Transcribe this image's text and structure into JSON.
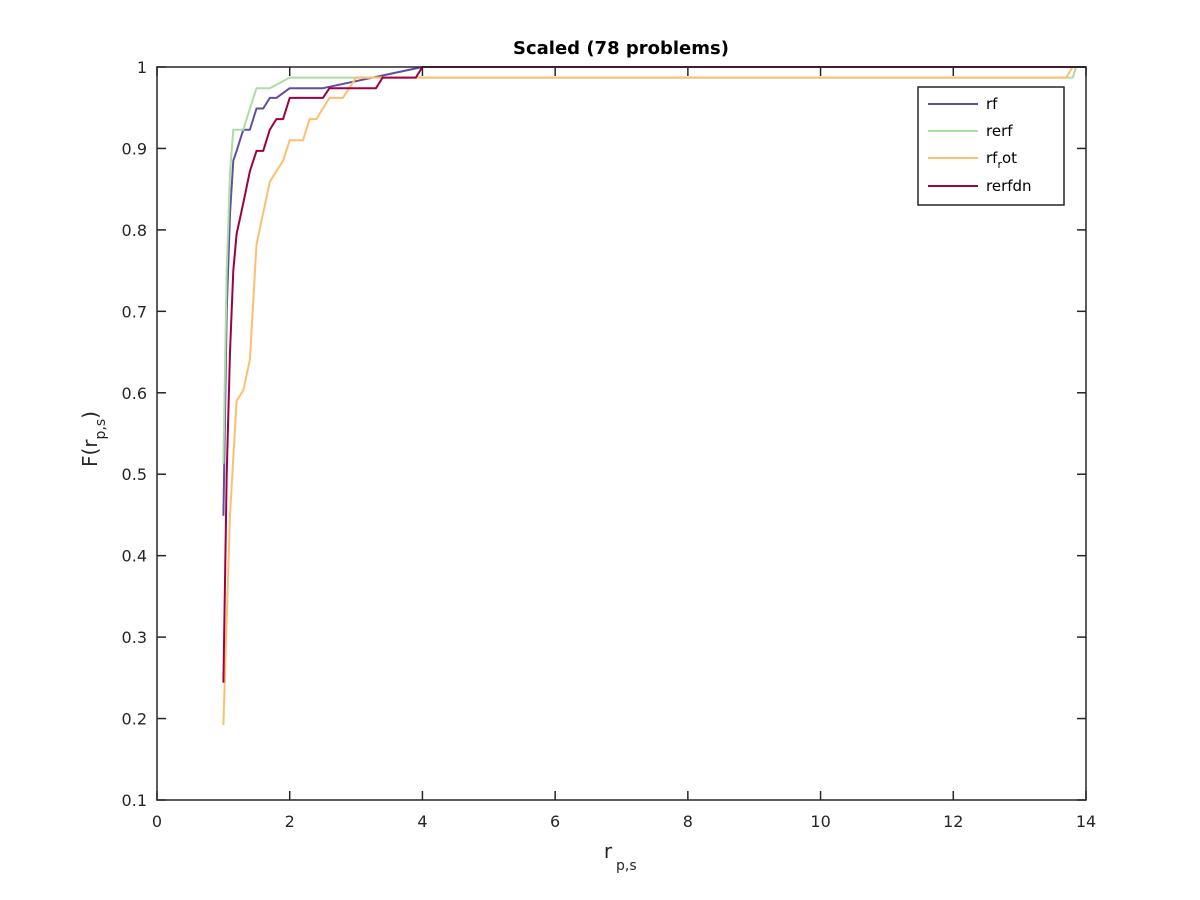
{
  "chart_data": {
    "type": "line",
    "title": "Scaled (78 problems)",
    "xlabel": {
      "main": "r",
      "sub": "p,s"
    },
    "ylabel": {
      "prefix": "F(r",
      "sub": "p,s",
      "suffix": ")"
    },
    "xlim": [
      0,
      14
    ],
    "ylim": [
      0.1,
      1
    ],
    "xticks": [
      0,
      2,
      4,
      6,
      8,
      10,
      12,
      14
    ],
    "yticks": [
      0.1,
      0.2,
      0.3,
      0.4,
      0.5,
      0.6,
      0.7,
      0.8,
      0.9,
      1
    ],
    "ytick_labels": [
      "0.1",
      "0.2",
      "0.3",
      "0.4",
      "0.5",
      "0.6",
      "0.7",
      "0.8",
      "0.9",
      "1"
    ],
    "grid": false,
    "legend_position": "top-right",
    "series": [
      {
        "name": "rf",
        "label_parts": [
          "rf"
        ],
        "color": "#5e4fa2",
        "x": [
          1.0,
          1.05,
          1.1,
          1.15,
          1.2,
          1.3,
          1.4,
          1.5,
          1.6,
          1.7,
          1.8,
          2.0,
          2.5,
          4.0,
          14.0
        ],
        "y": [
          0.449,
          0.7,
          0.82,
          0.885,
          0.897,
          0.923,
          0.923,
          0.949,
          0.949,
          0.962,
          0.962,
          0.974,
          0.974,
          1.0,
          1.0
        ]
      },
      {
        "name": "rerf",
        "label_parts": [
          "rerf"
        ],
        "color": "#abdda4",
        "x": [
          1.0,
          1.05,
          1.1,
          1.15,
          1.2,
          1.3,
          1.4,
          1.5,
          1.6,
          1.7,
          2.0,
          3.0,
          4.0,
          13.8,
          13.85,
          14.0
        ],
        "y": [
          0.513,
          0.75,
          0.87,
          0.923,
          0.923,
          0.923,
          0.949,
          0.974,
          0.974,
          0.974,
          0.987,
          0.987,
          0.987,
          0.987,
          1.0,
          1.0
        ]
      },
      {
        "name": "rf_rot",
        "label_parts": [
          "rf",
          "r",
          "ot"
        ],
        "color": "#fdbf6f",
        "x": [
          1.0,
          1.1,
          1.2,
          1.3,
          1.4,
          1.5,
          1.6,
          1.7,
          1.8,
          1.9,
          2.0,
          2.2,
          2.3,
          2.4,
          2.6,
          2.8,
          3.0,
          4.0,
          13.7,
          13.8,
          14.0
        ],
        "y": [
          0.192,
          0.45,
          0.59,
          0.603,
          0.641,
          0.782,
          0.821,
          0.859,
          0.872,
          0.885,
          0.91,
          0.91,
          0.936,
          0.936,
          0.962,
          0.962,
          0.987,
          0.987,
          0.987,
          1.0,
          1.0
        ]
      },
      {
        "name": "rerfdn",
        "label_parts": [
          "rerfdn"
        ],
        "color": "#9e0142",
        "x": [
          1.0,
          1.05,
          1.1,
          1.15,
          1.2,
          1.3,
          1.4,
          1.5,
          1.6,
          1.7,
          1.8,
          1.9,
          2.0,
          2.5,
          2.6,
          3.3,
          3.4,
          3.9,
          4.0,
          14.0
        ],
        "y": [
          0.244,
          0.5,
          0.65,
          0.75,
          0.795,
          0.833,
          0.872,
          0.897,
          0.897,
          0.923,
          0.936,
          0.936,
          0.962,
          0.962,
          0.974,
          0.974,
          0.987,
          0.987,
          1.0,
          1.0
        ]
      }
    ]
  }
}
